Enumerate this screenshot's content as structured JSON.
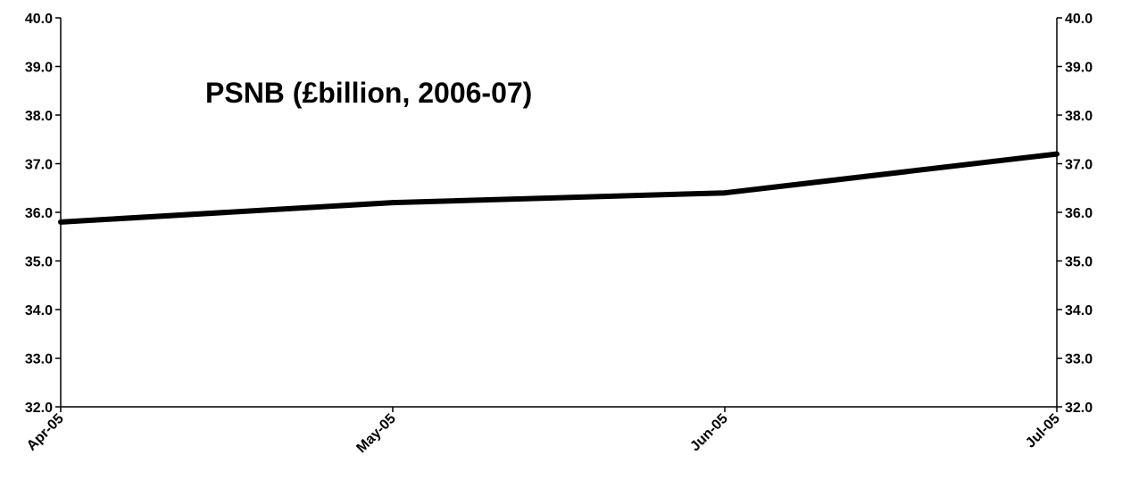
{
  "chart_data": {
    "type": "line",
    "title": "PSNB (£billion, 2006-07)",
    "xlabel": "",
    "ylabel": "",
    "categories": [
      "Apr-05",
      "May-05",
      "Jun-05",
      "Jul-05"
    ],
    "series": [
      {
        "values": [
          35.8,
          36.2,
          36.4,
          37.2
        ]
      }
    ],
    "ylim": [
      32.0,
      40.0
    ],
    "yticks": [
      "32.0",
      "33.0",
      "34.0",
      "35.0",
      "36.0",
      "37.0",
      "38.0",
      "39.0",
      "40.0"
    ],
    "y_axes": "left-and-right",
    "grid": false,
    "legend": "none",
    "colors": {
      "line": "#000000",
      "axis": "#000000",
      "background": "#ffffff"
    }
  }
}
